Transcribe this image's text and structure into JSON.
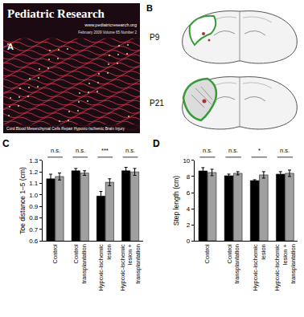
{
  "panels": {
    "A": {
      "label": "A",
      "journal": "Pediatric Research",
      "url": "www.pediatricresearch.org",
      "issue": "February 2009 Volume 65 Number 2",
      "caption": "Cord Blood Mesenchymal Cells Repair Hypoxic-Ischemic Brain Injury"
    },
    "B": {
      "label": "B",
      "sections": [
        "P9",
        "P21"
      ]
    }
  },
  "chart_data": [
    {
      "label": "C",
      "type": "bar",
      "ylabel": "Toe distance 1–5 (cm)",
      "grid": false,
      "categories": [
        "Control",
        "Control transplantation",
        "Hypoxic-ischemic lesion",
        "Hypoxic-ischemic lesion + transplantation"
      ],
      "series": [
        {
          "color": "#000000",
          "values": [
            1.14,
            1.21,
            0.99,
            1.21
          ],
          "errors": [
            0.04,
            0.02,
            0.04,
            0.03
          ]
        },
        {
          "color": "#a0a0a0",
          "values": [
            1.16,
            1.19,
            1.11,
            1.2
          ],
          "errors": [
            0.03,
            0.02,
            0.03,
            0.03
          ]
        }
      ],
      "ylim": [
        0.6,
        1.3
      ],
      "yticks": [
        0.6,
        0.7,
        0.8,
        0.9,
        {
          "value": 1,
          "label": "1.0"
        },
        1.1,
        1.2,
        1.3
      ],
      "annotations": [
        "n.s.",
        "n.s.",
        "***",
        "n.s."
      ]
    },
    {
      "label": "D",
      "type": "bar",
      "ylabel": "Step length (cm)",
      "grid": false,
      "categories": [
        "Control",
        "Control transplantation",
        "Hypoxic-ischemic lesion",
        "Hypoxic-ischemic lesion + transplantation"
      ],
      "series": [
        {
          "color": "#000000",
          "values": [
            8.7,
            8.1,
            7.5,
            8.3
          ],
          "errors": [
            0.4,
            0.2,
            0.1,
            0.3
          ]
        },
        {
          "color": "#a0a0a0",
          "values": [
            8.5,
            8.4,
            8.2,
            8.4
          ],
          "errors": [
            0.4,
            0.2,
            0.4,
            0.4
          ]
        }
      ],
      "ylim": [
        0,
        10
      ],
      "yticks": [
        0,
        2,
        4,
        6,
        8,
        10
      ],
      "annotations": [
        "n.s.",
        "n.s.",
        "*",
        "n.s."
      ]
    }
  ]
}
